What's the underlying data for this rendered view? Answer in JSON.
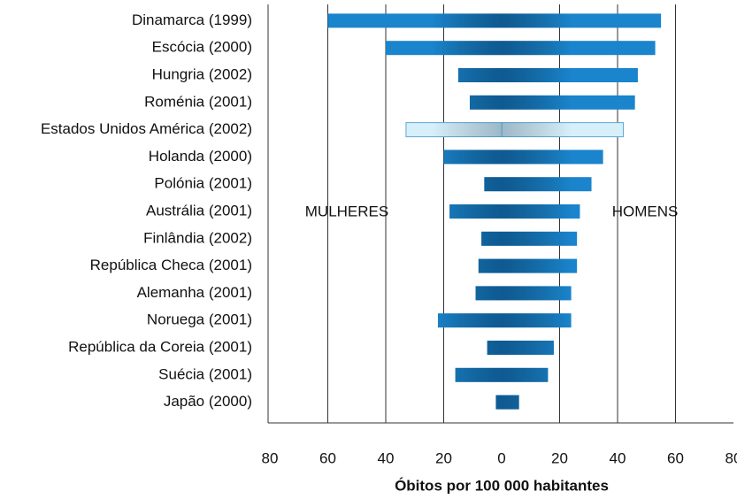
{
  "chart_data": {
    "type": "bar",
    "orientation": "horizontal",
    "diverging": true,
    "xlabel": "Óbitos por 100 000 habitantes",
    "categories": [
      "Dinamarca (1999)",
      "Escócia (2000)",
      "Hungria (2002)",
      "Roménia (2001)",
      "Estados Unidos América (2002)",
      "Holanda (2000)",
      "Polónia (2001)",
      "Austrália (2001)",
      "Finlândia (2002)",
      "República Checa (2001)",
      "Alemanha (2001)",
      "Noruega (2001)",
      "República da Coreia (2001)",
      "Suécia (2001)",
      "Japão (2000)"
    ],
    "series": [
      {
        "name": "MULHERES",
        "values": [
          -60,
          -40,
          -15,
          -11,
          -33,
          -20,
          -6,
          -18,
          -7,
          -8,
          -9,
          -22,
          -5,
          -16,
          -2
        ]
      },
      {
        "name": "HOMENS",
        "values": [
          55,
          53,
          47,
          46,
          42,
          35,
          31,
          27,
          26,
          26,
          24,
          24,
          18,
          16,
          6
        ]
      }
    ],
    "bar_colors": [
      "#1a84cc",
      "#1a84cc",
      "#1a84cc",
      "#1a84cc",
      "#d6eff9",
      "#1a84cc",
      "#1a84cc",
      "#1a84cc",
      "#1a84cc",
      "#1a84cc",
      "#1a84cc",
      "#1a84cc",
      "#1a84cc",
      "#1a84cc",
      "#1a84cc"
    ],
    "xlim": [
      -80,
      80
    ],
    "xticks": [
      {
        "value": -80,
        "label": "80"
      },
      {
        "value": -60,
        "label": "60"
      },
      {
        "value": -40,
        "label": "40"
      },
      {
        "value": -20,
        "label": "20"
      },
      0,
      20,
      40,
      60,
      80
    ],
    "grid": true
  }
}
